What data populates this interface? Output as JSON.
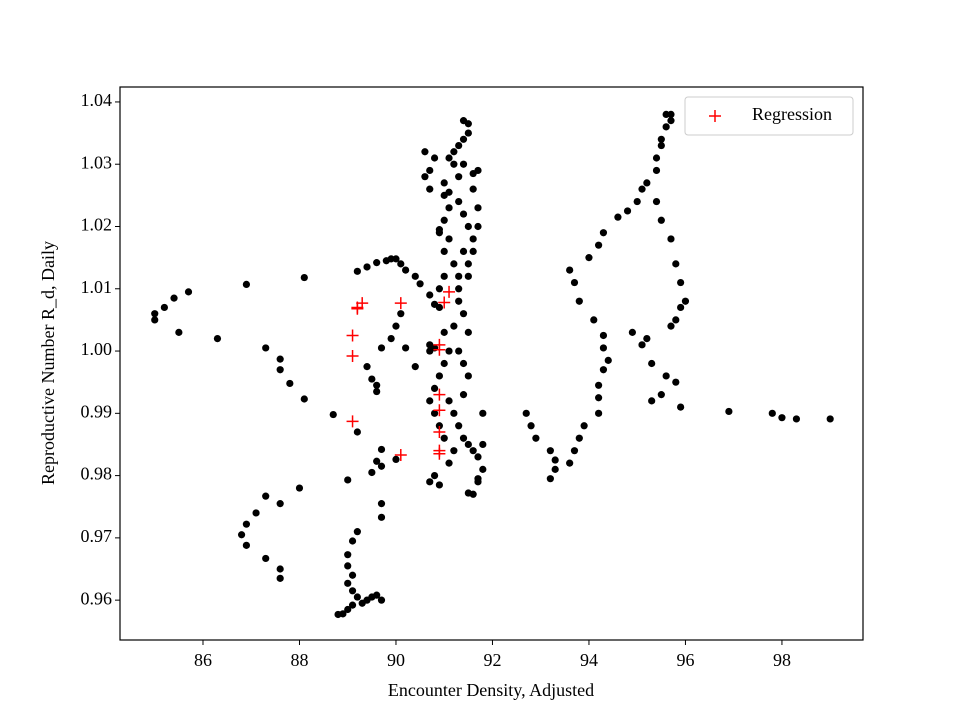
{
  "chart_data": {
    "type": "scatter",
    "x_label": "Encounter Density, Adjusted",
    "y_label": "Reproductive Number R_d, Daily",
    "xlim": [
      84.28,
      99.68
    ],
    "ylim": [
      0.9536,
      1.0424
    ],
    "xticks": [
      86,
      88,
      90,
      92,
      94,
      96,
      98
    ],
    "yticks": [
      {
        "value": 0.96,
        "label": "0.96"
      },
      {
        "value": 0.97,
        "label": "0.97"
      },
      {
        "value": 0.98,
        "label": "0.98"
      },
      {
        "value": 0.99,
        "label": "0.99"
      },
      {
        "value": 1.0,
        "label": "1.00"
      },
      {
        "value": 1.01,
        "label": "1.01"
      },
      {
        "value": 1.02,
        "label": "1.02"
      },
      {
        "value": 1.03,
        "label": "1.03"
      },
      {
        "value": 1.04,
        "label": "1.04"
      }
    ],
    "legend": "upper right",
    "series": [
      {
        "color": "#000000",
        "marker": "dot",
        "x": [
          85.0,
          85.0,
          85.2,
          85.4,
          85.7,
          85.5,
          86.3,
          86.9,
          88.1,
          87.3,
          87.6,
          87.6,
          87.8,
          88.1,
          88.7,
          89.2,
          89.0,
          88.0,
          87.6,
          87.3,
          87.1,
          86.9,
          86.8,
          86.9,
          87.3,
          87.6,
          87.6,
          89.2,
          89.1,
          89.0,
          89.0,
          89.1,
          89.0,
          89.1,
          89.2,
          89.4,
          89.1,
          89.0,
          88.9,
          88.8,
          89.3,
          89.6,
          89.7,
          89.5,
          89.5,
          89.6,
          89.7,
          89.7,
          89.7,
          89.7,
          90.0,
          89.4,
          89.5,
          89.6,
          89.6,
          89.2,
          89.4,
          89.6,
          89.8,
          90.0,
          89.9,
          90.1,
          90.2,
          90.4,
          90.5,
          90.7,
          90.9,
          90.1,
          90.0,
          89.9,
          89.7,
          90.2,
          90.7,
          90.4,
          90.7,
          90.8,
          90.6,
          90.7,
          90.6,
          90.8,
          90.7,
          90.9,
          91.0,
          91.1,
          91.0,
          91.2,
          91.0,
          90.9,
          90.8,
          91.0,
          91.1,
          91.0,
          90.9,
          90.8,
          90.7,
          90.8,
          90.9,
          91.0,
          91.2,
          91.1,
          90.8,
          90.7,
          90.9,
          91.1,
          91.2,
          91.3,
          91.4,
          91.5,
          91.6,
          91.7,
          91.8,
          91.7,
          91.6,
          91.5,
          91.7,
          91.8,
          91.8,
          91.4,
          91.5,
          91.5,
          91.4,
          91.3,
          91.2,
          91.1,
          91.2,
          91.0,
          91.1,
          91.3,
          91.4,
          91.5,
          91.6,
          91.4,
          91.3,
          91.3,
          91.2,
          91.3,
          91.4,
          91.5,
          91.4,
          91.6,
          91.7,
          91.6,
          91.7,
          91.7,
          91.6,
          91.5,
          91.5,
          91.4,
          91.5,
          91.3,
          90.9,
          91.0,
          91.1,
          91.3,
          91.4,
          92.7,
          92.8,
          92.9,
          93.2,
          93.3,
          93.3,
          93.2,
          93.6,
          93.7,
          93.8,
          93.9,
          94.2,
          94.2,
          94.2,
          94.3,
          94.4,
          94.3,
          94.3,
          94.1,
          93.8,
          93.7,
          93.6,
          94.0,
          94.2,
          94.3,
          94.6,
          94.8,
          95.0,
          95.1,
          95.2,
          95.4,
          95.4,
          95.5,
          95.5,
          95.6,
          95.7,
          95.6,
          95.7,
          95.4,
          95.5,
          95.7,
          95.8,
          95.9,
          96.0,
          95.9,
          95.8,
          95.7,
          95.2,
          95.1,
          94.9,
          95.3,
          95.6,
          95.8,
          95.5,
          95.3,
          95.9,
          96.9,
          97.8,
          98.0,
          98.3,
          99.0
        ],
        "values": [
          1.006,
          1.005,
          1.007,
          1.0085,
          1.0095,
          1.003,
          1.002,
          1.0107,
          1.0118,
          1.0005,
          0.9987,
          0.997,
          0.9948,
          0.9923,
          0.9898,
          0.987,
          0.9793,
          0.978,
          0.9755,
          0.9767,
          0.974,
          0.9722,
          0.9705,
          0.9688,
          0.9667,
          0.965,
          0.9635,
          0.971,
          0.9695,
          0.9673,
          0.9655,
          0.964,
          0.9627,
          0.9615,
          0.9605,
          0.96,
          0.9592,
          0.9585,
          0.9578,
          0.9577,
          0.9595,
          0.9608,
          0.96,
          0.9605,
          0.9805,
          0.9823,
          0.9842,
          0.9815,
          0.9755,
          0.9733,
          0.9826,
          0.9975,
          0.9955,
          0.9945,
          0.9935,
          1.0128,
          1.0135,
          1.0142,
          1.0145,
          1.0148,
          1.0148,
          1.014,
          1.013,
          1.012,
          1.0108,
          1.009,
          1.007,
          1.006,
          1.004,
          1.002,
          1.0005,
          1.0005,
          1.0,
          0.9975,
          1.001,
          1.0005,
          1.028,
          1.026,
          1.032,
          1.031,
          1.029,
          1.0195,
          1.021,
          1.018,
          1.016,
          1.014,
          1.012,
          1.01,
          1.0075,
          1.003,
          1.0,
          0.998,
          0.996,
          0.994,
          0.992,
          0.99,
          0.988,
          0.986,
          0.984,
          0.982,
          0.98,
          0.979,
          0.9785,
          0.992,
          0.99,
          0.988,
          0.986,
          0.985,
          0.984,
          0.983,
          0.981,
          0.979,
          0.977,
          0.9772,
          0.9795,
          0.985,
          0.99,
          1.037,
          1.0365,
          1.035,
          1.034,
          1.033,
          1.032,
          1.031,
          1.03,
          1.027,
          1.0255,
          1.024,
          1.022,
          1.02,
          1.018,
          1.016,
          1.012,
          1.008,
          1.004,
          1.0,
          0.998,
          0.996,
          0.993,
          1.0285,
          1.029,
          1.026,
          1.023,
          1.02,
          1.016,
          1.014,
          1.012,
          1.006,
          1.003,
          1.01,
          1.019,
          1.025,
          1.023,
          1.028,
          1.03,
          0.99,
          0.988,
          0.986,
          0.984,
          0.9825,
          0.981,
          0.9795,
          0.982,
          0.984,
          0.986,
          0.988,
          0.99,
          0.9925,
          0.9945,
          0.997,
          0.9985,
          1.0005,
          1.0025,
          1.005,
          1.008,
          1.011,
          1.013,
          1.015,
          1.017,
          1.019,
          1.0215,
          1.0225,
          1.024,
          1.026,
          1.027,
          1.029,
          1.031,
          1.033,
          1.034,
          1.036,
          1.037,
          1.038,
          1.038,
          1.024,
          1.021,
          1.018,
          1.014,
          1.011,
          1.008,
          1.007,
          1.005,
          1.004,
          1.002,
          1.001,
          1.003,
          0.998,
          0.996,
          0.995,
          0.993,
          0.992,
          0.991,
          0.9903,
          0.99,
          0.9893,
          0.9891,
          0.9891
        ]
      },
      {
        "name": "Regression",
        "color": "#ff0000",
        "marker": "plus",
        "x": [
          89.2,
          89.3,
          89.2,
          90.1,
          91.0,
          91.1,
          89.1,
          89.1,
          90.9,
          90.9,
          90.9,
          90.9,
          90.9,
          90.9,
          90.9,
          89.1,
          90.1
        ],
        "values": [
          1.007,
          1.0077,
          1.0068,
          1.0077,
          1.0078,
          1.0095,
          1.0025,
          0.9992,
          1.001,
          1.0002,
          0.993,
          0.9905,
          0.987,
          0.984,
          0.9835,
          0.9887,
          0.9833
        ]
      }
    ]
  }
}
